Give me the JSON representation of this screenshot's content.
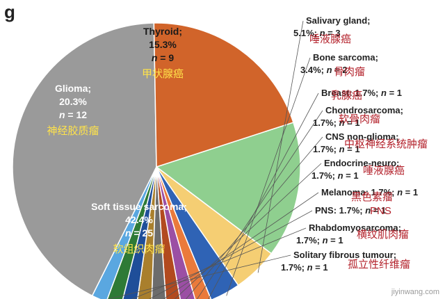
{
  "panel_letter": "g",
  "watermark": "jiyinwang.com",
  "chart_data": {
    "type": "pie",
    "start_angle_deg": -18,
    "direction": "clockwise",
    "slices": [
      {
        "name": "Thyroid",
        "percent": 15.3,
        "n": 9,
        "cn": "甲状腺癌",
        "color": "#8fcf8f"
      },
      {
        "name": "Salivary gland",
        "percent": 5.1,
        "n": 3,
        "cn": "唾液腺癌",
        "color": "#f5ce73"
      },
      {
        "name": "Bone sarcoma",
        "percent": 3.4,
        "n": 2,
        "cn": "骨肉瘤",
        "color": "#2f63b5"
      },
      {
        "name": "Breast",
        "percent": 1.7,
        "n": 1,
        "cn": "乳腺癌",
        "color": "#ea7a3b"
      },
      {
        "name": "Chondrosarcoma",
        "percent": 1.7,
        "n": 1,
        "cn": "软骨肉瘤",
        "color": "#9b4fa4"
      },
      {
        "name": "CNS non-glioma",
        "percent": 1.7,
        "n": 1,
        "cn": "中枢神经系统肿瘤",
        "color": "#b24a1f"
      },
      {
        "name": "Endocrine-neuro",
        "percent": 1.7,
        "n": 1,
        "cn": "唾液腺癌",
        "color": "#6c6c6c"
      },
      {
        "name": "Melanoma",
        "percent": 1.7,
        "n": 1,
        "cn": "黑色素瘤",
        "color": "#a97f2d"
      },
      {
        "name": "PNS",
        "percent": 1.7,
        "n": 1,
        "cn": "PNS",
        "color": "#1f4e99"
      },
      {
        "name": "Rhabdomyosarcoma",
        "percent": 1.7,
        "n": 1,
        "cn": "横纹肌肉瘤",
        "color": "#2e7a36"
      },
      {
        "name": "Solitary fibrous tumour",
        "percent": 1.7,
        "n": 1,
        "cn": "孤立性纤维瘤",
        "color": "#5aa7e0"
      },
      {
        "name": "Soft tissue sarcoma",
        "percent": 42.4,
        "n": 25,
        "cn": "软组织肉瘤",
        "color": "#9a9a9a"
      },
      {
        "name": "Glioma",
        "percent": 20.3,
        "n": 12,
        "cn": "神经胶质瘤",
        "color": "#d1642a"
      }
    ]
  }
}
